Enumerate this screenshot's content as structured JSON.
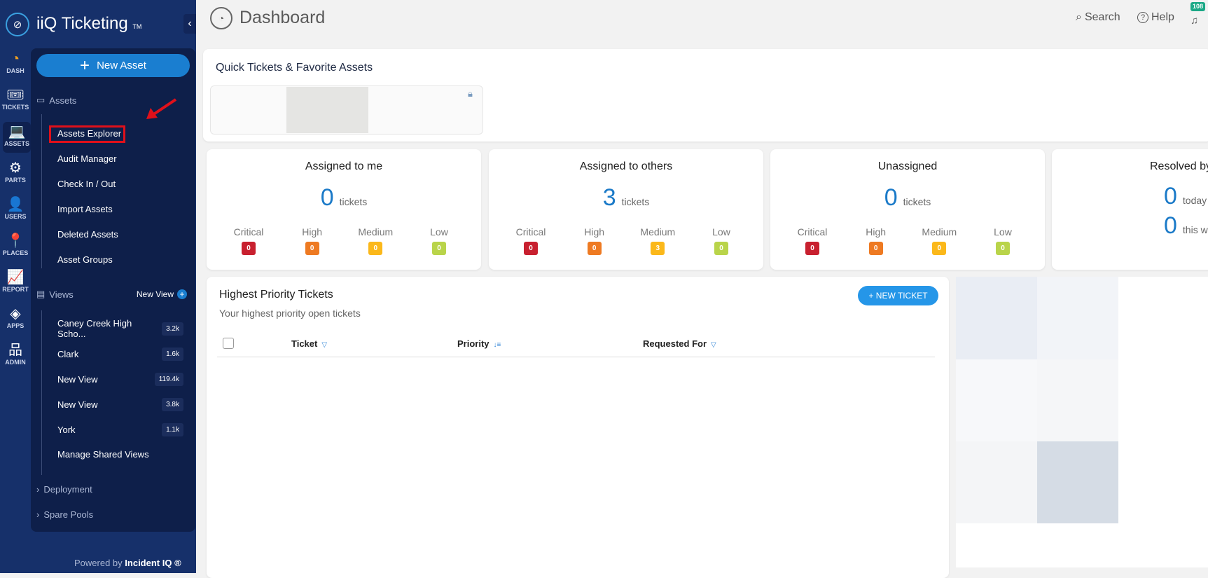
{
  "app": {
    "brand": "iiQ Ticketing",
    "tm": "TM",
    "collapse_icon": "chevron-left"
  },
  "rail": [
    {
      "label": "DASH",
      "icon": "dashboard-gauge",
      "glyph": "◔"
    },
    {
      "label": "TICKETS",
      "icon": "ticket",
      "glyph": "🎟"
    },
    {
      "label": "ASSETS",
      "icon": "laptop",
      "glyph": "💻"
    },
    {
      "label": "PARTS",
      "icon": "gear",
      "glyph": "⚙"
    },
    {
      "label": "USERS",
      "icon": "user",
      "glyph": "👤"
    },
    {
      "label": "PLACES",
      "icon": "map-pin",
      "glyph": "📍"
    },
    {
      "label": "REPORT",
      "icon": "chart",
      "glyph": "📈"
    },
    {
      "label": "APPS",
      "icon": "apps",
      "glyph": "◈"
    },
    {
      "label": "ADMIN",
      "icon": "org-chart",
      "glyph": "品"
    }
  ],
  "panel": {
    "new_asset": "New Asset",
    "assets_section": "Assets",
    "asset_items": [
      "Assets Explorer",
      "Audit Manager",
      "Check In / Out",
      "Import Assets",
      "Deleted Assets",
      "Asset Groups"
    ],
    "views_section": "Views",
    "new_view": "New View",
    "views": [
      {
        "label": "Caney Creek High Scho...",
        "count": "3.2k"
      },
      {
        "label": "Clark",
        "count": "1.6k"
      },
      {
        "label": "New View",
        "count": "119.4k"
      },
      {
        "label": "New View",
        "count": "3.8k"
      },
      {
        "label": "York",
        "count": "1.1k"
      }
    ],
    "manage_views": "Manage Shared Views",
    "collapsed": [
      "Deployment",
      "Spare Pools"
    ],
    "powered_prefix": "Powered by",
    "powered_brand": "Incident IQ ®"
  },
  "header": {
    "title": "Dashboard",
    "search": "Search",
    "help": "Help",
    "notifications": "108"
  },
  "quick": {
    "title": "Quick Tickets & Favorite Assets"
  },
  "stats": [
    {
      "title": "Assigned to me",
      "count": "0",
      "unit": "tickets",
      "critical": "0",
      "high": "0",
      "medium": "0",
      "low": "0"
    },
    {
      "title": "Assigned to others",
      "count": "3",
      "unit": "tickets",
      "critical": "0",
      "high": "0",
      "medium": "3",
      "low": "0"
    },
    {
      "title": "Unassigned",
      "count": "0",
      "unit": "tickets",
      "critical": "0",
      "high": "0",
      "medium": "0",
      "low": "0"
    }
  ],
  "priority_labels": {
    "critical": "Critical",
    "high": "High",
    "medium": "Medium",
    "low": "Low"
  },
  "priority_colors": {
    "critical": "#c8202f",
    "high": "#ee7a22",
    "medium": "#fbb81a",
    "low": "#b9d44a"
  },
  "resolved": {
    "title": "Resolved by",
    "today_count": "0",
    "today": "today",
    "week_count": "0",
    "week": "this w"
  },
  "highest": {
    "title": "Highest Priority Tickets",
    "subtitle": "Your highest priority open tickets",
    "new_ticket": "+ NEW TICKET",
    "columns": [
      "Ticket",
      "Priority",
      "Requested For"
    ]
  }
}
